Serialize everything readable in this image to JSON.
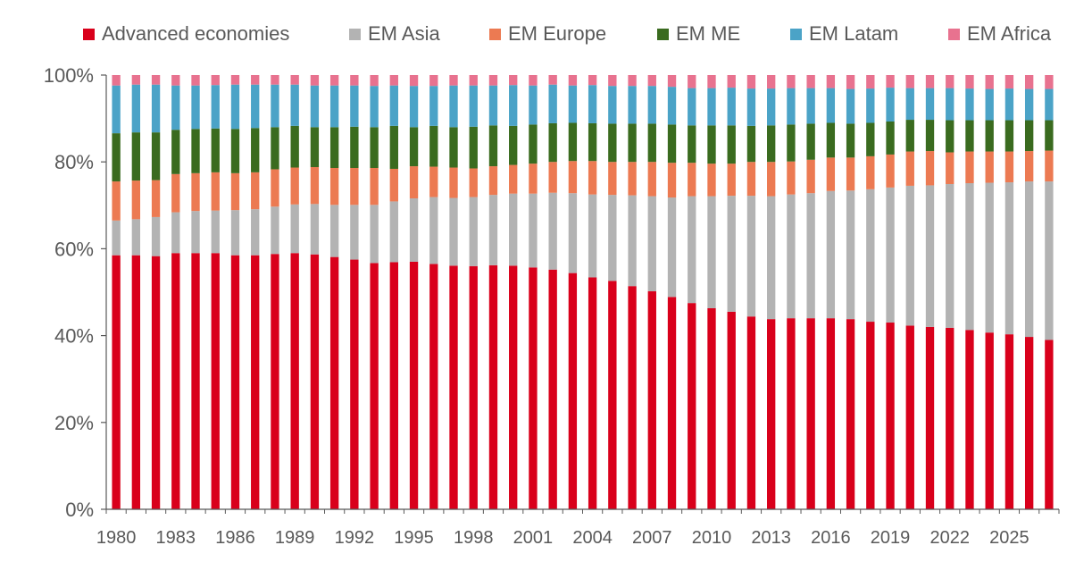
{
  "chart_data": {
    "type": "bar",
    "stacked": true,
    "title": "",
    "xlabel": "",
    "ylabel": "",
    "ylim": [
      0,
      100
    ],
    "y_ticks": [
      "0%",
      "20%",
      "40%",
      "60%",
      "80%",
      "100%"
    ],
    "x_tick_labels": [
      "1980",
      "1983",
      "1986",
      "1989",
      "1992",
      "1995",
      "1998",
      "2001",
      "2004",
      "2007",
      "2010",
      "2013",
      "2016",
      "2019",
      "2022",
      "2025"
    ],
    "legend_position": "top",
    "grid": false,
    "categories": [
      "1980",
      "1981",
      "1982",
      "1983",
      "1984",
      "1985",
      "1986",
      "1987",
      "1988",
      "1989",
      "1990",
      "1991",
      "1992",
      "1993",
      "1994",
      "1995",
      "1996",
      "1997",
      "1998",
      "1999",
      "2000",
      "2001",
      "2002",
      "2003",
      "2004",
      "2005",
      "2006",
      "2007",
      "2008",
      "2009",
      "2010",
      "2011",
      "2012",
      "2013",
      "2014",
      "2015",
      "2016",
      "2017",
      "2018",
      "2019",
      "2020",
      "2021",
      "2022",
      "2023",
      "2024",
      "2025",
      "2026",
      "2027"
    ],
    "series": [
      {
        "name": "Advanced economies",
        "color": "#d9001b",
        "values": [
          58.5,
          58.5,
          58.3,
          59.0,
          59.0,
          59.0,
          58.5,
          58.5,
          58.8,
          59.0,
          58.7,
          58.1,
          57.5,
          56.7,
          56.9,
          57.0,
          56.5,
          56.1,
          56.0,
          56.2,
          56.1,
          55.7,
          55.2,
          54.4,
          53.4,
          52.6,
          51.4,
          50.2,
          48.9,
          47.5,
          46.3,
          45.5,
          44.4,
          43.8,
          44.0,
          44.0,
          44.0,
          43.8,
          43.2,
          43.0,
          42.3,
          42.0,
          41.8,
          41.3,
          40.7,
          40.3,
          39.7,
          39.0
        ]
      },
      {
        "name": "EM Asia",
        "color": "#b3b3b3",
        "values": [
          8.0,
          8.3,
          9.0,
          9.4,
          9.7,
          9.8,
          10.4,
          10.6,
          10.9,
          11.2,
          11.6,
          12.0,
          12.6,
          13.4,
          14.0,
          14.6,
          15.4,
          15.6,
          15.9,
          16.2,
          16.6,
          17.0,
          17.7,
          18.4,
          19.1,
          19.8,
          20.9,
          21.9,
          22.9,
          24.6,
          25.8,
          26.7,
          27.8,
          28.3,
          28.5,
          28.8,
          29.3,
          29.6,
          30.5,
          31.1,
          32.2,
          32.6,
          33.1,
          33.8,
          34.5,
          35.0,
          35.8,
          36.5
        ]
      },
      {
        "name": "EM Europe",
        "color": "#ec7a52",
        "values": [
          9.0,
          8.9,
          8.5,
          8.8,
          8.7,
          8.8,
          8.5,
          8.5,
          8.6,
          8.5,
          8.5,
          8.5,
          8.5,
          8.5,
          7.5,
          7.4,
          7.0,
          7.0,
          6.6,
          6.6,
          6.6,
          6.9,
          7.1,
          7.4,
          7.7,
          7.6,
          7.7,
          7.9,
          8.0,
          7.7,
          7.5,
          7.4,
          7.8,
          7.9,
          7.6,
          7.7,
          7.7,
          7.6,
          7.6,
          7.6,
          7.9,
          7.9,
          7.3,
          7.3,
          7.2,
          7.1,
          7.0,
          7.1
        ]
      },
      {
        "name": "EM ME",
        "color": "#3a6b1f",
        "values": [
          11.1,
          11.1,
          11.0,
          10.2,
          10.2,
          10.1,
          10.2,
          10.2,
          9.7,
          9.6,
          9.2,
          9.4,
          9.5,
          9.4,
          9.9,
          9.0,
          9.4,
          9.3,
          9.6,
          9.4,
          9.0,
          9.0,
          8.9,
          8.8,
          8.7,
          8.8,
          8.8,
          8.8,
          8.8,
          8.6,
          8.8,
          8.8,
          8.3,
          8.4,
          8.5,
          8.3,
          8.0,
          7.8,
          7.7,
          7.6,
          7.3,
          7.2,
          7.4,
          7.2,
          7.2,
          7.2,
          7.1,
          7.0
        ]
      },
      {
        "name": "EM Latam",
        "color": "#4ba3c7",
        "values": [
          11.0,
          11.0,
          11.0,
          10.2,
          10.0,
          10.0,
          10.2,
          10.0,
          9.8,
          9.5,
          9.6,
          9.6,
          9.5,
          9.5,
          9.3,
          9.5,
          9.2,
          9.6,
          9.5,
          9.2,
          9.4,
          9.0,
          8.9,
          8.6,
          8.8,
          8.7,
          8.7,
          8.7,
          8.7,
          8.6,
          8.6,
          8.7,
          8.6,
          8.5,
          8.4,
          8.2,
          8.0,
          8.0,
          7.9,
          7.8,
          7.3,
          7.3,
          7.4,
          7.3,
          7.2,
          7.3,
          7.2,
          7.2
        ]
      },
      {
        "name": "EM Africa",
        "color": "#e8728f",
        "values": [
          2.4,
          2.2,
          2.2,
          2.4,
          2.4,
          2.3,
          2.2,
          2.2,
          2.2,
          2.2,
          2.4,
          2.4,
          2.4,
          2.5,
          2.4,
          2.5,
          2.5,
          2.4,
          2.4,
          2.4,
          2.3,
          2.4,
          2.2,
          2.4,
          2.3,
          2.5,
          2.5,
          2.5,
          2.7,
          3.0,
          3.0,
          2.9,
          3.1,
          3.1,
          3.0,
          3.0,
          3.0,
          3.2,
          3.1,
          2.9,
          3.0,
          3.0,
          3.0,
          3.1,
          3.2,
          3.1,
          3.2,
          3.2
        ]
      }
    ]
  }
}
